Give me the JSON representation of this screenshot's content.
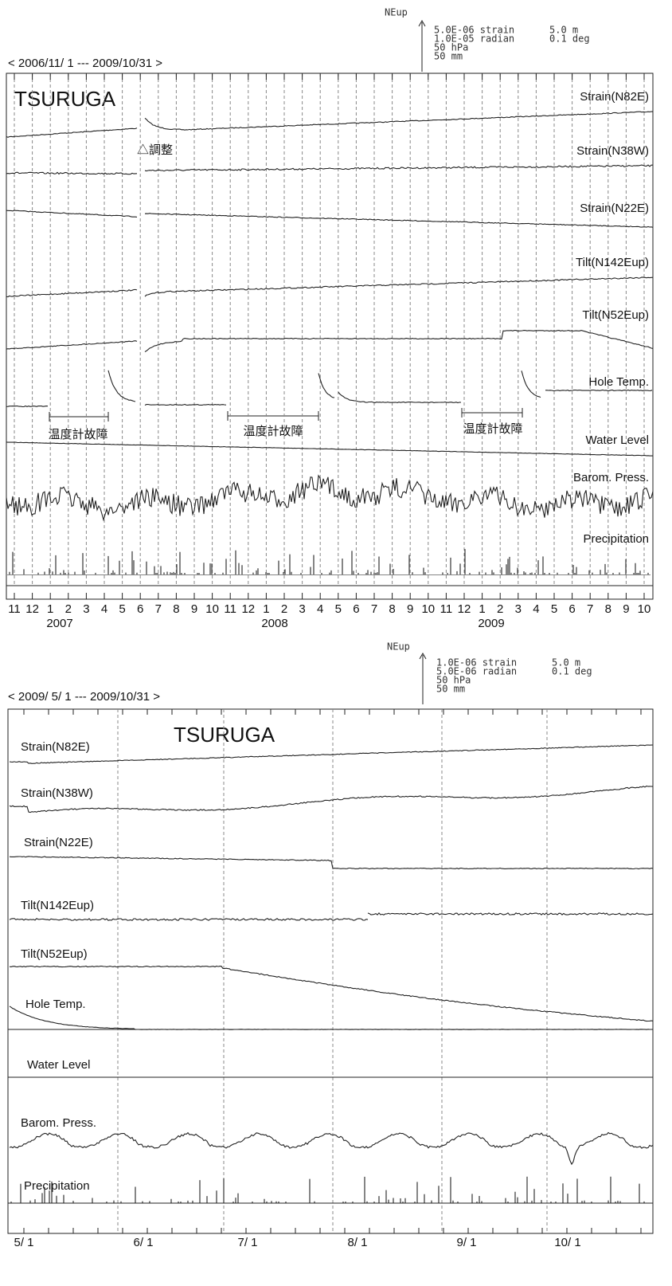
{
  "panels": [
    {
      "direction": "NEup",
      "scale_left": [
        "5.0E-06 strain",
        "1.0E-05 radian",
        "50 hPa",
        "50 mm"
      ],
      "scale_right": [
        "5.0 m",
        "0.1 deg"
      ],
      "period": "< 2006/11/ 1 --- 2009/10/31 >",
      "station": "TSURUGA",
      "channels": [
        "Strain(N82E)",
        "Strain(N38W)",
        "Strain(N22E)",
        "Tilt(N142Eup)",
        "Tilt(N52Eup)",
        "Hole Temp.",
        "Water Level",
        "Barom. Press.",
        "Precipitation"
      ],
      "x_labels": [
        "11",
        "12",
        "1",
        "2",
        "3",
        "4",
        "5",
        "6",
        "7",
        "8",
        "9",
        "10",
        "11",
        "12",
        "1",
        "2",
        "3",
        "4",
        "5",
        "6",
        "7",
        "8",
        "9",
        "10",
        "11",
        "12",
        "1",
        "2",
        "3",
        "4",
        "5",
        "6",
        "7",
        "8",
        "9",
        "10"
      ],
      "years": [
        "2007",
        "2008",
        "2009"
      ],
      "annotations": [
        "△調整",
        "温度計故障",
        "温度計故障",
        "温度計故障"
      ]
    },
    {
      "direction": "NEup",
      "scale_left": [
        "1.0E-06 strain",
        "5.0E-06 radian",
        "50 hPa",
        "50 mm"
      ],
      "scale_right": [
        "5.0 m",
        "0.1 deg"
      ],
      "period": "< 2009/ 5/ 1 --- 2009/10/31 >",
      "station": "TSURUGA",
      "channels": [
        "Strain(N82E)",
        "Strain(N38W)",
        "Strain(N22E)",
        "Tilt(N142Eup)",
        "Tilt(N52Eup)",
        "Hole Temp.",
        "Water Level",
        "Barom. Press.",
        "Precipitation"
      ],
      "x_labels": [
        "5/ 1",
        "6/ 1",
        "7/ 1",
        "8/ 1",
        "9/ 1",
        "10/ 1"
      ]
    }
  ]
}
